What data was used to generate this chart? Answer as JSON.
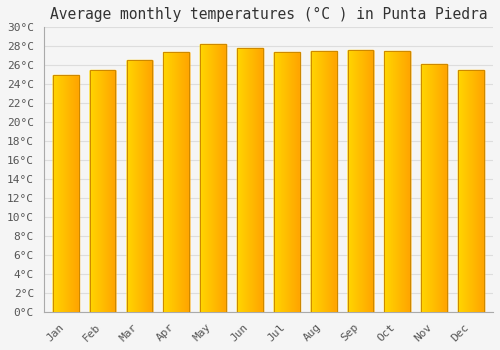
{
  "title": "Average monthly temperatures (°C ) in Punta Piedra",
  "months": [
    "Jan",
    "Feb",
    "Mar",
    "Apr",
    "May",
    "Jun",
    "Jul",
    "Aug",
    "Sep",
    "Oct",
    "Nov",
    "Dec"
  ],
  "values": [
    25.0,
    25.5,
    26.6,
    27.4,
    28.2,
    27.8,
    27.4,
    27.5,
    27.6,
    27.5,
    26.1,
    25.5
  ],
  "bar_color_left": "#FFD700",
  "bar_color_right": "#FFA500",
  "bar_edge_color": "#CC8800",
  "ylim": [
    0,
    30
  ],
  "ytick_step": 2,
  "background_color": "#f5f5f5",
  "plot_bg_color": "#f5f5f5",
  "grid_color": "#dddddd",
  "title_fontsize": 10.5,
  "tick_fontsize": 8,
  "font_family": "monospace",
  "title_color": "#333333",
  "tick_color": "#555555"
}
